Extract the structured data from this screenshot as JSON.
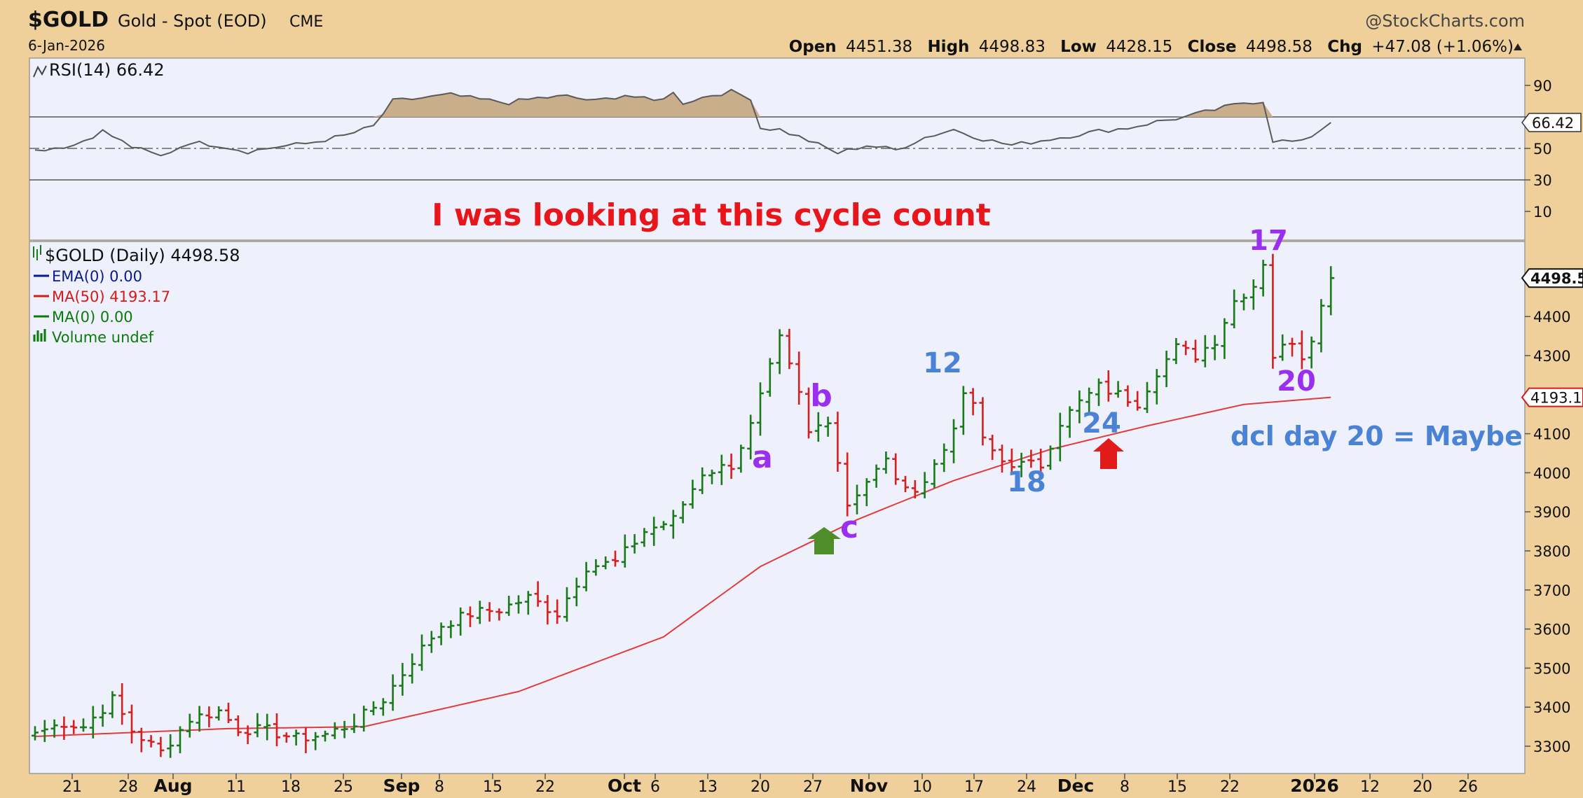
{
  "header": {
    "symbol": "$GOLD",
    "description": "Gold - Spot (EOD)",
    "exchange": "CME",
    "date": "6-Jan-2026",
    "watermark": "@StockCharts.com",
    "open_label": "Open",
    "open": "4451.38",
    "high_label": "High",
    "high": "4498.83",
    "low_label": "Low",
    "low": "4428.15",
    "close_label": "Close",
    "close": "4498.58",
    "chg_label": "Chg",
    "chg": "+47.08 (+1.06%)"
  },
  "rsi_panel": {
    "label": "RSI(14) 66.42",
    "current_tag": "66.42",
    "ticks": [
      90,
      70,
      50,
      30,
      10
    ],
    "tick_labels": [
      "90",
      "",
      "50",
      "30",
      "10"
    ],
    "overbought": 70,
    "oversold": 30,
    "midline": 50
  },
  "price_panel": {
    "legend": [
      {
        "text": "$GOLD (Daily) 4498.58",
        "color": "#000000"
      },
      {
        "text": "EMA(0) 0.00",
        "color": "#0a1a8c"
      },
      {
        "text": "MA(50) 4193.17",
        "color": "#d41b1b"
      },
      {
        "text": "MA(0) 0.00",
        "color": "#0a7a0a"
      },
      {
        "text": "Volume undef",
        "color": "#0a7a0a"
      }
    ],
    "price_tag": "4498.58",
    "ma_tag": "4193.17",
    "y_ticks": [
      3300,
      3400,
      3500,
      3600,
      3700,
      3800,
      3900,
      4000,
      4100,
      4200,
      4300,
      4400
    ],
    "y_tick_labels": [
      "3300",
      "3400",
      "3500",
      "3600",
      "3700",
      "3800",
      "3900",
      "4000",
      "4100",
      "",
      "4300",
      "4400"
    ]
  },
  "annotations": {
    "headline": "I was looking at this cycle count",
    "headline_color": "#e8161a",
    "wave_a": "a",
    "wave_b": "b",
    "wave_c": "c",
    "cycle_12": "12",
    "cycle_18": "18",
    "cycle_24": "24",
    "cycle_17": "17",
    "cycle_20": "20",
    "dcl_note": "dcl day 20 = Maybe",
    "purple": "#9a2ff0",
    "blue": "#4a82d6"
  },
  "x_axis": {
    "labels": [
      "21",
      "28",
      "Aug",
      "11",
      "18",
      "25",
      "Sep",
      "8",
      "15",
      "22",
      "Oct",
      "6",
      "13",
      "20",
      "27",
      "Nov",
      "10",
      "17",
      "24",
      "Dec",
      "8",
      "15",
      "22",
      "2026",
      "12",
      "20",
      "26"
    ],
    "bold": [
      "Aug",
      "Sep",
      "Oct",
      "Nov",
      "Dec",
      "2026"
    ]
  },
  "colors": {
    "up_bar": "#1a7a1a",
    "down_bar": "#d81e1e",
    "ma50": "#e23b3b",
    "rsi_line": "#5a5a5a",
    "rsi_fill": "#c9ae8c",
    "plot_bg": "#eef0fb",
    "frame_bg": "#f0d09a"
  },
  "chart_data": {
    "type": "bar",
    "title": "$GOLD Gold - Spot (EOD) CME",
    "price_anchors_close": [
      [
        0,
        3335
      ],
      [
        3,
        3360
      ],
      [
        5,
        3350
      ],
      [
        8,
        3420
      ],
      [
        10,
        3340
      ],
      [
        13,
        3285
      ],
      [
        16,
        3370
      ],
      [
        19,
        3390
      ],
      [
        21,
        3345
      ],
      [
        24,
        3340
      ],
      [
        27,
        3320
      ],
      [
        30,
        3330
      ],
      [
        33,
        3360
      ],
      [
        36,
        3420
      ],
      [
        39,
        3520
      ],
      [
        42,
        3610
      ],
      [
        45,
        3640
      ],
      [
        48,
        3650
      ],
      [
        51,
        3680
      ],
      [
        54,
        3640
      ],
      [
        57,
        3760
      ],
      [
        60,
        3770
      ],
      [
        63,
        3850
      ],
      [
        66,
        3880
      ],
      [
        69,
        4000
      ],
      [
        72,
        4020
      ],
      [
        74,
        4120
      ],
      [
        77,
        4340
      ],
      [
        79,
        4200
      ],
      [
        80,
        4100
      ],
      [
        82,
        4140
      ],
      [
        84,
        3920
      ],
      [
        86,
        3980
      ],
      [
        88,
        4030
      ],
      [
        90,
        3950
      ],
      [
        92,
        3980
      ],
      [
        94,
        4060
      ],
      [
        96,
        4190
      ],
      [
        97,
        4180
      ],
      [
        98,
        4080
      ],
      [
        100,
        4030
      ],
      [
        102,
        4020
      ],
      [
        104,
        4020
      ],
      [
        106,
        4130
      ],
      [
        108,
        4180
      ],
      [
        110,
        4220
      ],
      [
        112,
        4200
      ],
      [
        114,
        4180
      ],
      [
        116,
        4260
      ],
      [
        118,
        4320
      ],
      [
        120,
        4300
      ],
      [
        122,
        4340
      ],
      [
        124,
        4440
      ],
      [
        126,
        4480
      ],
      [
        127,
        4540
      ],
      [
        128,
        4300
      ],
      [
        130,
        4340
      ],
      [
        131,
        4300
      ],
      [
        132,
        4350
      ],
      [
        134,
        4498.58
      ]
    ],
    "ma50_anchors": [
      [
        0,
        3325
      ],
      [
        20,
        3345
      ],
      [
        34,
        3350
      ],
      [
        50,
        3440
      ],
      [
        65,
        3580
      ],
      [
        75,
        3760
      ],
      [
        85,
        3880
      ],
      [
        95,
        3980
      ],
      [
        105,
        4060
      ],
      [
        115,
        4120
      ],
      [
        125,
        4175
      ],
      [
        134,
        4193.17
      ]
    ],
    "rsi_anchors": [
      [
        0,
        49
      ],
      [
        4,
        52
      ],
      [
        7,
        61
      ],
      [
        10,
        51
      ],
      [
        13,
        45
      ],
      [
        16,
        54
      ],
      [
        19,
        52
      ],
      [
        22,
        48
      ],
      [
        25,
        51
      ],
      [
        28,
        53
      ],
      [
        32,
        58
      ],
      [
        35,
        64
      ],
      [
        37,
        80
      ],
      [
        40,
        82
      ],
      [
        43,
        84
      ],
      [
        46,
        81
      ],
      [
        49,
        79
      ],
      [
        52,
        82
      ],
      [
        55,
        83
      ],
      [
        58,
        80
      ],
      [
        61,
        84
      ],
      [
        64,
        80
      ],
      [
        66,
        85
      ],
      [
        67,
        79
      ],
      [
        70,
        84
      ],
      [
        72,
        86
      ],
      [
        74,
        82
      ],
      [
        75,
        63
      ],
      [
        77,
        62
      ],
      [
        80,
        55
      ],
      [
        83,
        47
      ],
      [
        86,
        52
      ],
      [
        89,
        49
      ],
      [
        92,
        57
      ],
      [
        95,
        62
      ],
      [
        98,
        56
      ],
      [
        101,
        52
      ],
      [
        104,
        55
      ],
      [
        107,
        58
      ],
      [
        110,
        61
      ],
      [
        113,
        63
      ],
      [
        116,
        67
      ],
      [
        119,
        70
      ],
      [
        121,
        73
      ],
      [
        123,
        76
      ],
      [
        125,
        79
      ],
      [
        127,
        80
      ],
      [
        128,
        55
      ],
      [
        131,
        54
      ],
      [
        132,
        58
      ],
      [
        134,
        66.42
      ]
    ],
    "y_range": [
      3250,
      4610
    ],
    "rsi_range": [
      0,
      100
    ]
  }
}
